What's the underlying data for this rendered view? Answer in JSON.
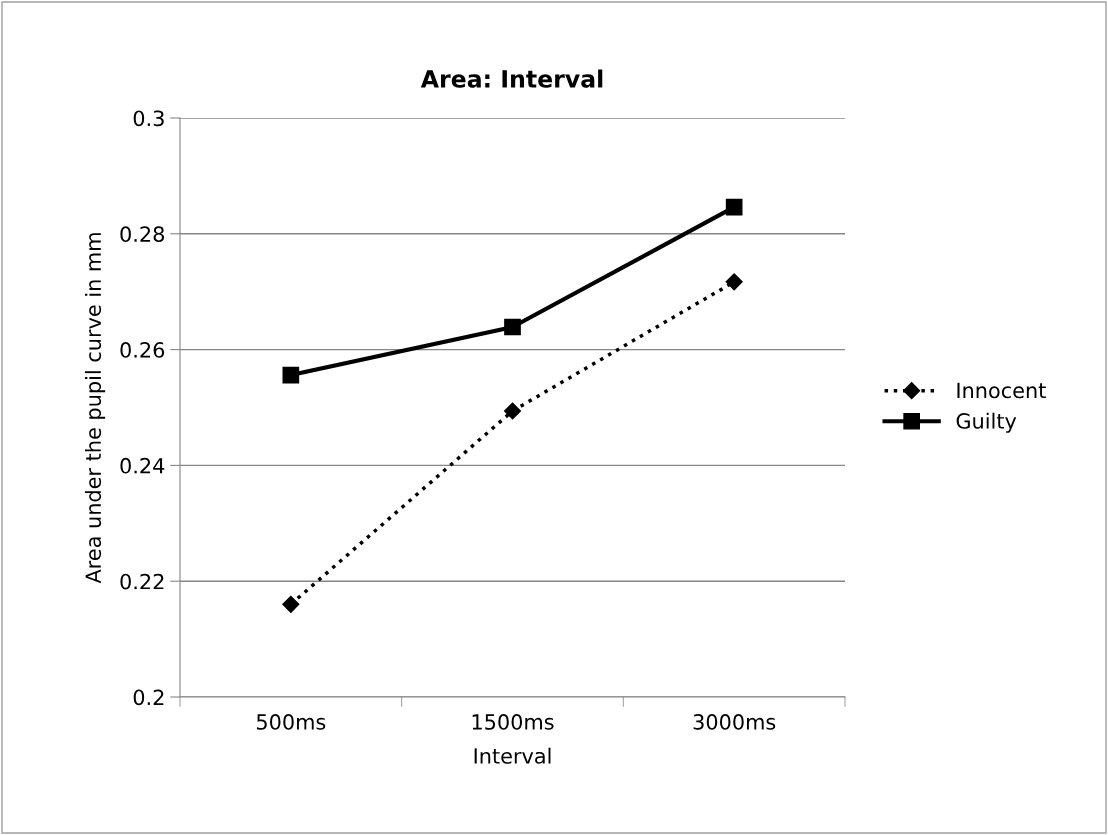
{
  "chart_data": {
    "type": "line",
    "title": "Area: Interval",
    "xlabel": "Interval",
    "ylabel": "Area under the pupil curve in mm",
    "categories": [
      "500ms",
      "1500ms",
      "3000ms"
    ],
    "series": [
      {
        "name": "Innocent",
        "color": "#000000",
        "values": [
          0.216,
          0.2494,
          0.2717
        ],
        "marker": "diamond",
        "line_style": "dotted"
      },
      {
        "name": "Guilty",
        "color": "#000000",
        "values": [
          0.2556,
          0.2639,
          0.2846
        ],
        "marker": "square",
        "line_style": "solid"
      }
    ],
    "ylim": [
      0.2,
      0.3
    ],
    "yticks": [
      0.2,
      0.22,
      0.24,
      0.26,
      0.28,
      0.3
    ],
    "grid": "y",
    "legend": "right"
  }
}
